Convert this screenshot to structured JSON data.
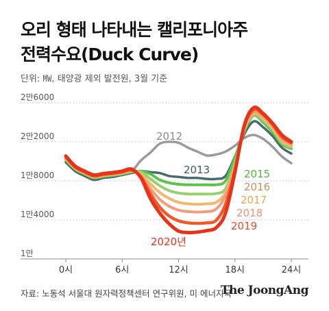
{
  "header": {
    "title_line1": "오리 형태 나타내는 캘리포니아주",
    "title_line2": "전력수요(Duck Curve)",
    "subtitle": "단위: ㎿, 태양광 제외 발전원, 3월 기준"
  },
  "footer": {
    "source": "자료: 노동석 서울대 원자력정책센터 연구위원, 미 에너지국",
    "brand": "The JoongAng"
  },
  "chart_data": {
    "type": "line",
    "x_tick_labels": [
      "0시",
      "6시",
      "12시",
      "18시",
      "24시"
    ],
    "x_ticks": [
      0,
      6,
      12,
      18,
      24
    ],
    "xlim": [
      0,
      24
    ],
    "y_tick_labels": [
      "1만",
      "1만4000",
      "1만8000",
      "2만2000",
      "2만6000"
    ],
    "y_ticks": [
      10000,
      14000,
      18000,
      22000,
      26000
    ],
    "ylim": [
      10000,
      26000
    ],
    "grid": "horizontal dotted",
    "x": [
      0,
      1,
      2,
      3,
      4,
      5,
      6,
      7,
      8,
      9,
      10,
      11,
      12,
      13,
      14,
      15,
      16,
      17,
      18,
      19,
      20,
      21,
      22,
      23,
      24
    ],
    "series": [
      {
        "name": "2012",
        "color": "#9a9a9a",
        "values": [
          20100,
          19100,
          18600,
          18300,
          18500,
          18600,
          18800,
          19000,
          20100,
          20900,
          21800,
          22000,
          21900,
          21400,
          21000,
          20600,
          20700,
          21000,
          21600,
          22400,
          22700,
          22300,
          21500,
          20500,
          19800
        ]
      },
      {
        "name": "2013",
        "color": "#486a6b",
        "values": [
          19900,
          19000,
          18500,
          18100,
          18300,
          18400,
          18600,
          18800,
          19000,
          18900,
          18800,
          18500,
          18400,
          18300,
          18300,
          18200,
          18200,
          18500,
          20500,
          22800,
          24100,
          23500,
          22600,
          21400,
          20800
        ]
      },
      {
        "name": "2015",
        "color": "#5bc24a",
        "values": [
          20150,
          19200,
          18700,
          18300,
          18450,
          18550,
          18700,
          18900,
          19000,
          18700,
          18100,
          17800,
          17650,
          17600,
          17600,
          17600,
          17600,
          18000,
          20400,
          23100,
          24700,
          24000,
          23000,
          21750,
          21300
        ]
      },
      {
        "name": "2016",
        "color": "#97d06f",
        "values": [
          20200,
          19250,
          18750,
          18350,
          18500,
          18600,
          18750,
          18950,
          18900,
          18200,
          17500,
          17000,
          16750,
          16650,
          16650,
          16650,
          16700,
          17200,
          19800,
          23200,
          24800,
          24200,
          23250,
          21900,
          21450
        ]
      },
      {
        "name": "2017",
        "color": "#f2b86c",
        "values": [
          20300,
          19300,
          18800,
          18400,
          18550,
          18650,
          18800,
          19000,
          18700,
          17700,
          16800,
          16200,
          15800,
          15650,
          15600,
          15650,
          15800,
          16800,
          19500,
          23300,
          24900,
          24400,
          23400,
          22100,
          21600
        ]
      },
      {
        "name": "2018",
        "color": "#f59a7c",
        "values": [
          20400,
          19350,
          18850,
          18450,
          18600,
          18700,
          18850,
          19050,
          18500,
          17200,
          16100,
          15400,
          15000,
          14850,
          14800,
          14850,
          15100,
          16500,
          19400,
          23450,
          25050,
          24600,
          23600,
          22300,
          21750
        ]
      },
      {
        "name": "2019",
        "color": "#f05a28",
        "values": [
          20450,
          19400,
          18900,
          18500,
          18650,
          18750,
          18900,
          19100,
          18400,
          16700,
          15300,
          14400,
          13900,
          13700,
          13650,
          13700,
          13950,
          15600,
          19100,
          23600,
          25300,
          24800,
          23800,
          22500,
          21900
        ]
      },
      {
        "name": "2020년",
        "color": "#e8321a",
        "values": [
          20550,
          19500,
          19000,
          18600,
          18750,
          18850,
          19000,
          19200,
          18300,
          16200,
          14700,
          13600,
          12850,
          12700,
          12750,
          12900,
          13200,
          14700,
          18900,
          23700,
          25500,
          24900,
          23900,
          22700,
          22000
        ]
      }
    ]
  }
}
